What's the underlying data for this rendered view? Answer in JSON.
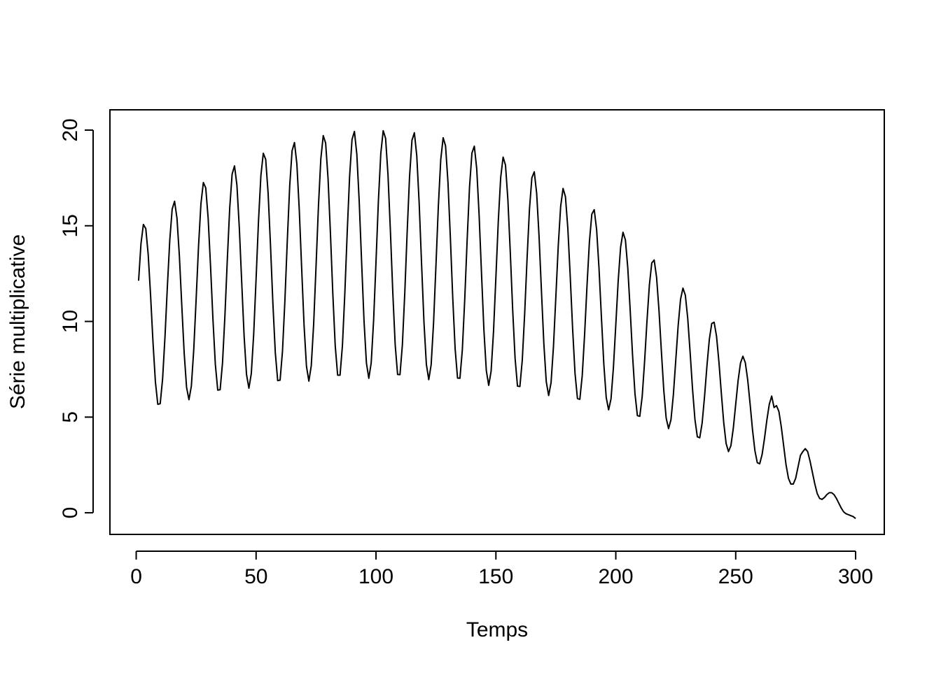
{
  "chart_data": {
    "type": "line",
    "xlabel": "Temps",
    "ylabel": "Série multiplicative",
    "color": "#000000",
    "x": [
      1,
      2,
      3,
      4,
      5,
      6,
      7,
      8,
      9,
      10,
      11,
      12,
      13,
      14,
      15,
      16,
      17,
      18,
      19,
      20,
      21,
      22,
      23,
      24,
      25,
      26,
      27,
      28,
      29,
      30,
      31,
      32,
      33,
      34,
      35,
      36,
      37,
      38,
      39,
      40,
      41,
      42,
      43,
      44,
      45,
      46,
      47,
      48,
      49,
      50,
      51,
      52,
      53,
      54,
      55,
      56,
      57,
      58,
      59,
      60,
      61,
      62,
      63,
      64,
      65,
      66,
      67,
      68,
      69,
      70,
      71,
      72,
      73,
      74,
      75,
      76,
      77,
      78,
      79,
      80,
      81,
      82,
      83,
      84,
      85,
      86,
      87,
      88,
      89,
      90,
      91,
      92,
      93,
      94,
      95,
      96,
      97,
      98,
      99,
      100,
      101,
      102,
      103,
      104,
      105,
      106,
      107,
      108,
      109,
      110,
      111,
      112,
      113,
      114,
      115,
      116,
      117,
      118,
      119,
      120,
      121,
      122,
      123,
      124,
      125,
      126,
      127,
      128,
      129,
      130,
      131,
      132,
      133,
      134,
      135,
      136,
      137,
      138,
      139,
      140,
      141,
      142,
      143,
      144,
      145,
      146,
      147,
      148,
      149,
      150,
      151,
      152,
      153,
      154,
      155,
      156,
      157,
      158,
      159,
      160,
      161,
      162,
      163,
      164,
      165,
      166,
      167,
      168,
      169,
      170,
      171,
      172,
      173,
      174,
      175,
      176,
      177,
      178,
      179,
      180,
      181,
      182,
      183,
      184,
      185,
      186,
      187,
      188,
      189,
      190,
      191,
      192,
      193,
      194,
      195,
      196,
      197,
      198,
      199,
      200,
      201,
      202,
      203,
      204,
      205,
      206,
      207,
      208,
      209,
      210,
      211,
      212,
      213,
      214,
      215,
      216,
      217,
      218,
      219,
      220,
      221,
      222,
      223,
      224,
      225,
      226,
      227,
      228,
      229,
      230,
      231,
      232,
      233,
      234,
      235,
      236,
      237,
      238,
      239,
      240,
      241,
      242,
      243,
      244,
      245,
      246,
      247,
      248,
      249,
      250,
      251,
      252,
      253,
      254,
      255,
      256,
      257,
      258,
      259,
      260,
      261,
      262,
      263,
      264,
      265,
      266,
      267,
      268,
      269,
      270,
      271,
      272,
      273,
      274,
      275,
      276,
      277,
      278,
      279,
      280,
      281,
      282,
      283,
      284,
      285,
      286,
      287,
      288,
      289,
      290,
      291,
      292,
      293,
      294,
      295,
      296,
      297,
      298,
      299,
      300
    ],
    "values": [
      12.13,
      14.08,
      15.07,
      14.85,
      13.5,
      11.35,
      8.92,
      6.85,
      5.67,
      5.7,
      6.98,
      9.19,
      11.83,
      14.25,
      15.87,
      16.28,
      15.4,
      13.43,
      10.86,
      8.36,
      6.56,
      5.91,
      6.62,
      8.53,
      11.18,
      13.95,
      16.16,
      17.26,
      16.98,
      15.4,
      12.89,
      10.12,
      7.76,
      6.41,
      6.43,
      7.85,
      10.31,
      13.25,
      15.93,
      17.7,
      18.13,
      17.12,
      14.9,
      12.04,
      9.24,
      7.23,
      6.51,
      7.28,
      9.35,
      12.25,
      15.25,
      17.63,
      18.79,
      18.47,
      16.72,
      13.98,
      10.95,
      8.38,
      6.91,
      6.93,
      8.44,
      11.07,
      14.2,
      17.06,
      18.92,
      19.35,
      18.23,
      15.84,
      12.78,
      9.8,
      7.66,
      6.88,
      7.68,
      9.86,
      12.9,
      16.03,
      18.51,
      19.71,
      19.32,
      17.47,
      14.6,
      11.42,
      8.72,
      7.19,
      7.19,
      8.74,
      11.46,
      14.68,
      17.6,
      19.51,
      19.93,
      18.74,
      16.27,
      13.1,
      10.04,
      7.83,
      7.03,
      7.84,
      10.05,
      13.12,
      16.3,
      18.78,
      19.97,
      19.57,
      17.66,
      14.74,
      11.52,
      8.78,
      7.23,
      7.22,
      8.78,
      11.49,
      14.69,
      17.59,
      19.47,
      19.86,
      18.66,
      16.18,
      13.02,
      9.96,
      7.76,
      6.96,
      7.74,
      9.92,
      12.93,
      16.03,
      18.46,
      19.6,
      19.18,
      17.29,
      14.41,
      11.24,
      8.57,
      7.04,
      7.03,
      8.52,
      11.14,
      14.24,
      17.02,
      18.8,
      19.16,
      17.98,
      15.56,
      12.5,
      9.55,
      7.43,
      6.66,
      7.4,
      9.46,
      12.32,
      15.25,
      17.53,
      18.59,
      18.17,
      16.35,
      13.6,
      10.6,
      8.07,
      6.62,
      6.6,
      7.98,
      10.42,
      13.3,
      15.88,
      17.51,
      17.82,
      16.69,
      14.43,
      11.57,
      8.82,
      6.85,
      6.13,
      6.8,
      8.68,
      11.29,
      13.95,
      16.01,
      16.95,
      16.52,
      14.85,
      12.34,
      9.59,
      7.28,
      5.97,
      5.93,
      7.17,
      9.34,
      11.89,
      14.17,
      15.61,
      15.84,
      14.8,
      12.77,
      10.22,
      7.78,
      6.03,
      5.38,
      5.95,
      7.58,
      9.83,
      12.13,
      13.88,
      14.66,
      14.26,
      12.79,
      10.58,
      8.21,
      6.22,
      5.08,
      5.04,
      6.07,
      7.9,
      10.02,
      11.9,
      13.06,
      13.21,
      12.31,
      10.59,
      8.45,
      6.41,
      4.95,
      4.4,
      4.86,
      6.16,
      7.96,
      9.78,
      11.16,
      11.74,
      11.37,
      10.15,
      8.37,
      6.46,
      4.88,
      3.97,
      3.92,
      4.69,
      6.07,
      7.67,
      9.06,
      9.89,
      9.96,
      9.23,
      7.89,
      6.26,
      4.72,
      3.62,
      3.2,
      3.51,
      4.42,
      5.67,
      6.91,
      7.83,
      8.18,
      7.85,
      6.95,
      5.69,
      4.35,
      3.25,
      2.62,
      2.56,
      3.04,
      3.88,
      4.85,
      5.67,
      6.1,
      5.5,
      5.6,
      5.3,
      4.5,
      3.5,
      2.5,
      1.8,
      1.5,
      1.5,
      1.8,
      2.4,
      3.0,
      3.2,
      3.35,
      3.2,
      2.7,
      2.1,
      1.5,
      1.0,
      0.75,
      0.7,
      0.8,
      0.95,
      1.05,
      1.05,
      0.95,
      0.75,
      0.5,
      0.25,
      0.05,
      -0.05,
      -0.1,
      -0.15,
      -0.2,
      -0.3
    ],
    "xlim": [
      -10.96,
      311.96
    ],
    "ylim": [
      -1.13,
      21.06
    ],
    "xticks": [
      0,
      50,
      100,
      150,
      200,
      250,
      300
    ],
    "yticks": [
      0,
      5,
      10,
      15,
      20
    ]
  }
}
